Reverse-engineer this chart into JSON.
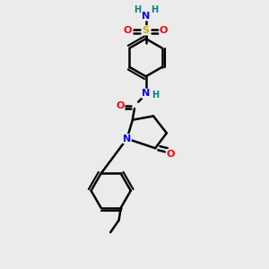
{
  "bg_color": "#ebebeb",
  "atom_colors": {
    "C": "#000000",
    "N": "#0000ff",
    "O": "#ff0000",
    "S": "#ccaa00",
    "H": "#008080"
  },
  "bond_color": "#000000",
  "bond_width": 1.8
}
